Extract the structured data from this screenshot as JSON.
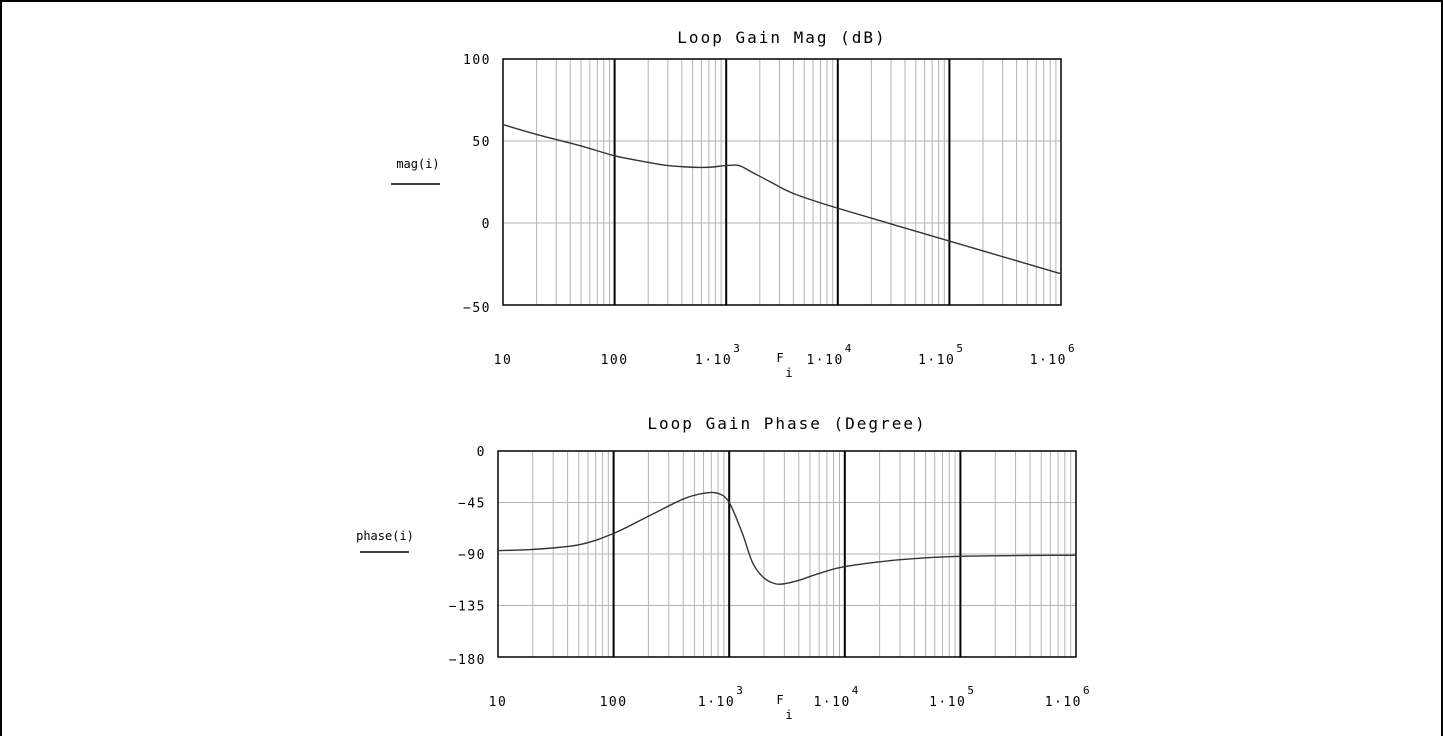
{
  "chart_data": [
    {
      "type": "line",
      "title": "Loop Gain Mag (dB)",
      "ylabel": "mag(i)",
      "xlabel_main": "F",
      "xlabel_sub": "i",
      "x_scale": "log",
      "xlim": [
        10,
        1000000
      ],
      "ylim": [
        -50,
        100
      ],
      "yticks": [
        -50,
        0,
        50,
        100
      ],
      "ytick_labels": [
        "−50",
        "0",
        "50",
        "100"
      ],
      "xtick_labels": [
        {
          "base": "10",
          "exp": ""
        },
        {
          "base": "100",
          "exp": ""
        },
        {
          "base": "1·10",
          "exp": "3"
        },
        {
          "base": "1·10",
          "exp": "4"
        },
        {
          "base": "1·10",
          "exp": "5"
        },
        {
          "base": "1·10",
          "exp": "6"
        }
      ],
      "grid": true,
      "series": [
        {
          "x": [
            10,
            20,
            50,
            100,
            200,
            300,
            500,
            700,
            1000,
            1300,
            1700,
            2500,
            4000,
            10000,
            100000,
            1000000
          ],
          "y": [
            60,
            54,
            47,
            41,
            37,
            35,
            34,
            34,
            35,
            35,
            31,
            25,
            18,
            9,
            -11,
            -31
          ]
        }
      ]
    },
    {
      "type": "line",
      "title": "Loop Gain Phase (Degree)",
      "ylabel": "phase(i)",
      "xlabel_main": "F",
      "xlabel_sub": "i",
      "x_scale": "log",
      "xlim": [
        10,
        1000000
      ],
      "ylim": [
        -180,
        0
      ],
      "yticks": [
        -180,
        -135,
        -90,
        -45,
        0
      ],
      "ytick_labels": [
        "−180",
        "−135",
        "−90",
        "−45",
        "0"
      ],
      "xtick_labels": [
        {
          "base": "10",
          "exp": ""
        },
        {
          "base": "100",
          "exp": ""
        },
        {
          "base": "1·10",
          "exp": "3"
        },
        {
          "base": "1·10",
          "exp": "4"
        },
        {
          "base": "1·10",
          "exp": "5"
        },
        {
          "base": "1·10",
          "exp": "6"
        }
      ],
      "grid": true,
      "series": [
        {
          "x": [
            10,
            20,
            50,
            100,
            200,
            400,
            600,
            800,
            1000,
            1300,
            1600,
            2000,
            2500,
            3000,
            4000,
            6000,
            10000,
            30000,
            100000,
            1000000
          ],
          "y": [
            -87,
            -86,
            -82,
            -72,
            -57,
            -42,
            -37,
            -37,
            -45,
            -72,
            -98,
            -111,
            -116,
            -116,
            -113,
            -107,
            -101,
            -95,
            -92,
            -91
          ]
        }
      ]
    }
  ]
}
